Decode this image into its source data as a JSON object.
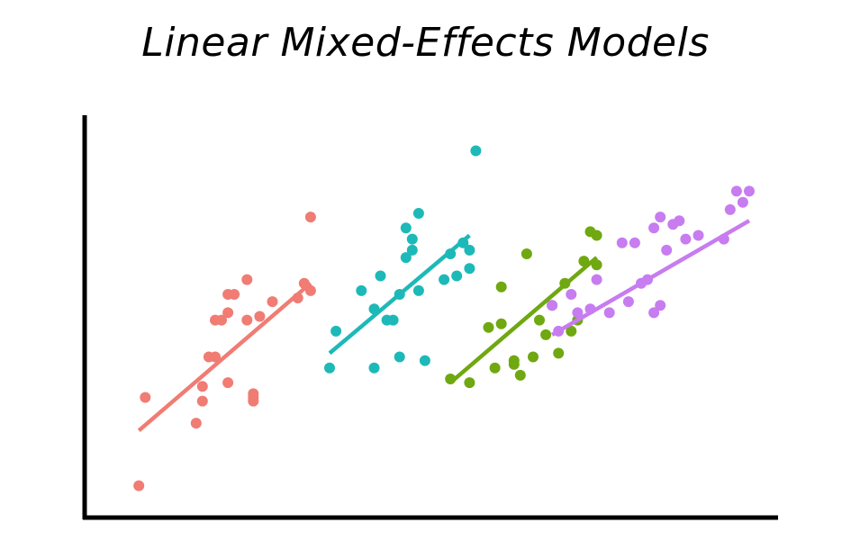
{
  "title": "Linear Mixed-Effects Models",
  "chart_data": {
    "type": "scatter",
    "title": "Linear Mixed-Effects Models",
    "xlabel": "",
    "ylabel": "",
    "tick_labels_shown": false,
    "grid": false,
    "legend": "none",
    "xlim": [
      0,
      100
    ],
    "ylim": [
      0,
      100
    ],
    "series": [
      {
        "color": "#F07C74",
        "points": [
          [
            4,
            4
          ],
          [
            5,
            28
          ],
          [
            13,
            21
          ],
          [
            14,
            27
          ],
          [
            14,
            31
          ],
          [
            15,
            39
          ],
          [
            16,
            39
          ],
          [
            16,
            49
          ],
          [
            17,
            49
          ],
          [
            18,
            32
          ],
          [
            18,
            51
          ],
          [
            18,
            56
          ],
          [
            19,
            56
          ],
          [
            21,
            49
          ],
          [
            21,
            60
          ],
          [
            22,
            27
          ],
          [
            22,
            28
          ],
          [
            22,
            29
          ],
          [
            23,
            50
          ],
          [
            25,
            54
          ],
          [
            29,
            55
          ],
          [
            30,
            59
          ],
          [
            31,
            77
          ],
          [
            31,
            57
          ]
        ],
        "fit": [
          [
            4,
            19
          ],
          [
            31,
            59
          ]
        ]
      },
      {
        "color": "#1DB9B8",
        "points": [
          [
            34,
            36
          ],
          [
            35,
            46
          ],
          [
            39,
            57
          ],
          [
            41,
            36
          ],
          [
            41,
            52
          ],
          [
            42,
            61
          ],
          [
            43,
            49
          ],
          [
            44,
            49
          ],
          [
            45,
            39
          ],
          [
            45,
            56
          ],
          [
            46,
            66
          ],
          [
            46,
            74
          ],
          [
            47,
            68
          ],
          [
            47,
            71
          ],
          [
            48,
            57
          ],
          [
            48,
            78
          ],
          [
            49,
            38
          ],
          [
            52,
            60
          ],
          [
            53,
            67
          ],
          [
            54,
            61
          ],
          [
            55,
            70
          ],
          [
            56,
            63
          ],
          [
            56,
            68
          ],
          [
            57,
            95
          ]
        ],
        "fit": [
          [
            34,
            40
          ],
          [
            56,
            72
          ]
        ]
      },
      {
        "color": "#6FA810",
        "points": [
          [
            53,
            33
          ],
          [
            56,
            32
          ],
          [
            59,
            47
          ],
          [
            60,
            36
          ],
          [
            61,
            48
          ],
          [
            61,
            58
          ],
          [
            63,
            37
          ],
          [
            63,
            38
          ],
          [
            64,
            34
          ],
          [
            65,
            67
          ],
          [
            66,
            39
          ],
          [
            67,
            49
          ],
          [
            68,
            45
          ],
          [
            69,
            53
          ],
          [
            70,
            40
          ],
          [
            71,
            59
          ],
          [
            72,
            46
          ],
          [
            73,
            49
          ],
          [
            74,
            65
          ],
          [
            75,
            73
          ],
          [
            76,
            64
          ],
          [
            76,
            72
          ]
        ],
        "fit": [
          [
            53,
            32
          ],
          [
            76,
            66
          ]
        ]
      },
      {
        "color": "#C77CF0",
        "points": [
          [
            69,
            53
          ],
          [
            70,
            46
          ],
          [
            72,
            56
          ],
          [
            73,
            51
          ],
          [
            75,
            52
          ],
          [
            76,
            60
          ],
          [
            78,
            51
          ],
          [
            80,
            70
          ],
          [
            81,
            54
          ],
          [
            82,
            70
          ],
          [
            83,
            59
          ],
          [
            84,
            60
          ],
          [
            85,
            51
          ],
          [
            85,
            74
          ],
          [
            86,
            53
          ],
          [
            86,
            77
          ],
          [
            87,
            68
          ],
          [
            88,
            75
          ],
          [
            89,
            76
          ],
          [
            90,
            71
          ],
          [
            92,
            72
          ],
          [
            96,
            71
          ],
          [
            97,
            79
          ],
          [
            98,
            84
          ],
          [
            99,
            81
          ],
          [
            100,
            84
          ]
        ],
        "fit": [
          [
            69,
            45
          ],
          [
            100,
            76
          ]
        ]
      }
    ]
  }
}
